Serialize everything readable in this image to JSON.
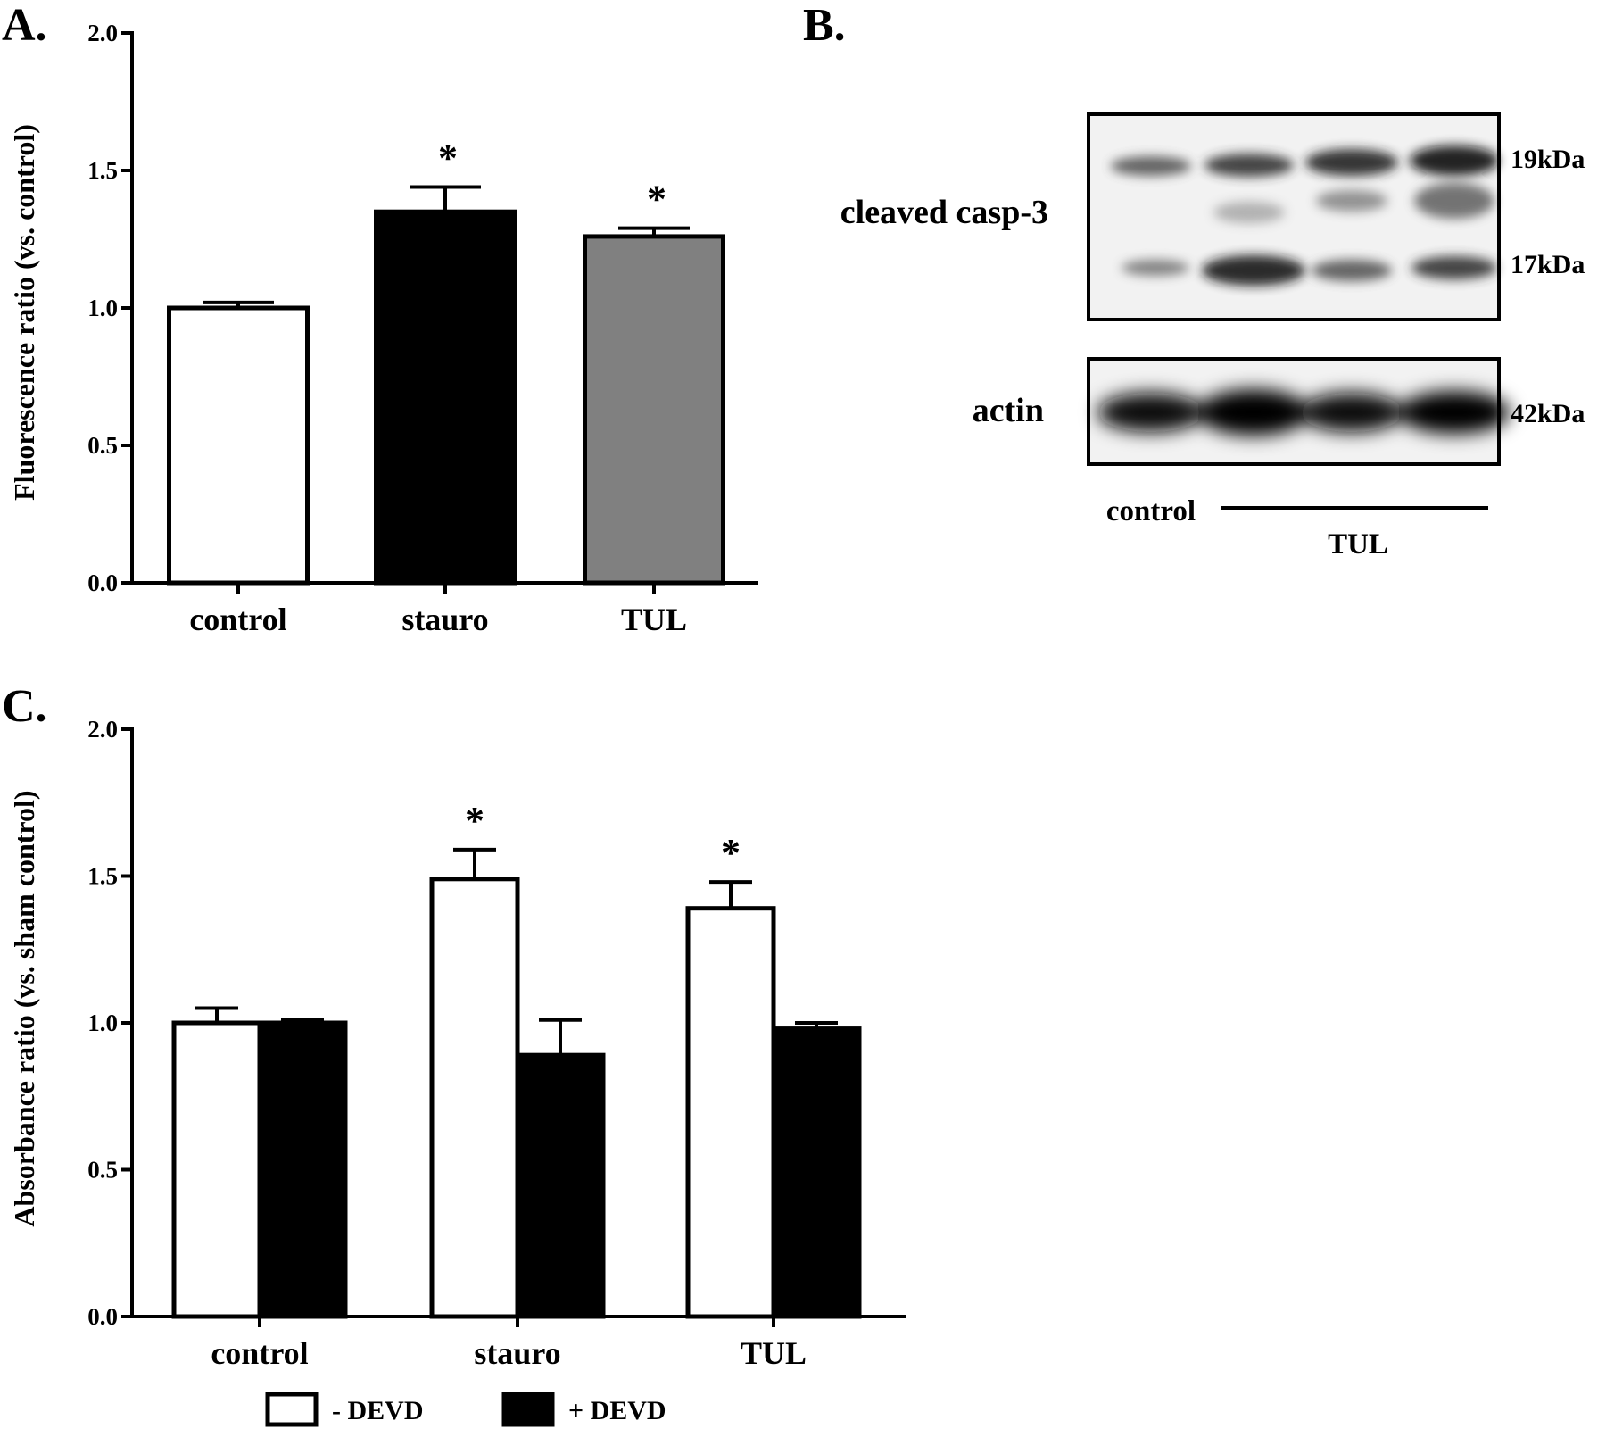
{
  "chart_data": [
    {
      "type": "bar",
      "panel": "A.",
      "ylabel": "Fluorescence ratio (vs. control)",
      "categories": [
        "control",
        "stauro",
        "TUL"
      ],
      "ylim": [
        0,
        2.0
      ],
      "yticks": [
        "0.0",
        "0.5",
        "1.0",
        "1.5",
        "2.0"
      ],
      "values": [
        1.0,
        1.35,
        1.26
      ],
      "errors": [
        0.02,
        0.09,
        0.03
      ],
      "colors": [
        "#ffffff",
        "#000000",
        "#808080"
      ],
      "significance": [
        "",
        "*",
        "*"
      ],
      "grid": false
    },
    {
      "type": "bar",
      "panel": "C.",
      "ylabel": "Absorbance ratio (vs. sham control)",
      "categories": [
        "control",
        "stauro",
        "TUL"
      ],
      "ylim": [
        0,
        2.0
      ],
      "yticks": [
        "0.0",
        "0.5",
        "1.0",
        "1.5",
        "2.0"
      ],
      "series": [
        {
          "name": "- DEVD",
          "color": "#ffffff",
          "values": [
            1.0,
            1.49,
            1.39
          ],
          "errors": [
            0.05,
            0.1,
            0.09
          ],
          "significance": [
            "",
            "*",
            "*"
          ]
        },
        {
          "name": "+ DEVD",
          "color": "#000000",
          "values": [
            1.0,
            0.89,
            0.98
          ],
          "errors": [
            0.01,
            0.12,
            0.02
          ],
          "significance": [
            "",
            "",
            ""
          ]
        }
      ],
      "legend": "bottom",
      "grid": false
    }
  ],
  "blot": {
    "panel": "B.",
    "top_label": "cleaved casp-3",
    "bottom_label": "actin",
    "mw": [
      "19kDa",
      "17kDa",
      "42kDa"
    ],
    "lane_control": "control",
    "lane_treatment": "TUL"
  }
}
